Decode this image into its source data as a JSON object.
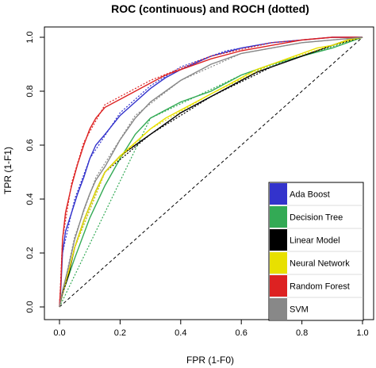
{
  "chart_data": {
    "type": "line",
    "title": "ROC (continuous) and ROCH (dotted)",
    "xlabel": "FPR (1-F0)",
    "ylabel": "TPR (1-F1)",
    "xlim": [
      0,
      1
    ],
    "ylim": [
      0,
      1
    ],
    "x_ticks": [
      "0.0",
      "0.2",
      "0.4",
      "0.6",
      "0.8",
      "1.0"
    ],
    "y_ticks": [
      "0.0",
      "0.2",
      "0.4",
      "0.6",
      "0.8",
      "1.0"
    ],
    "grid": false,
    "legend_position": "bottom-right",
    "diagonal": {
      "style": "dashed",
      "color": "#000000",
      "points": [
        [
          0,
          0
        ],
        [
          1,
          1
        ]
      ]
    },
    "series": [
      {
        "name": "Ada Boost",
        "color": "#3333cc",
        "roc": [
          [
            0,
            0
          ],
          [
            0.005,
            0.08
          ],
          [
            0.01,
            0.2
          ],
          [
            0.02,
            0.28
          ],
          [
            0.04,
            0.35
          ],
          [
            0.06,
            0.42
          ],
          [
            0.08,
            0.48
          ],
          [
            0.1,
            0.55
          ],
          [
            0.12,
            0.6
          ],
          [
            0.15,
            0.64
          ],
          [
            0.2,
            0.71
          ],
          [
            0.25,
            0.76
          ],
          [
            0.3,
            0.81
          ],
          [
            0.35,
            0.85
          ],
          [
            0.4,
            0.88
          ],
          [
            0.5,
            0.93
          ],
          [
            0.6,
            0.96
          ],
          [
            0.7,
            0.98
          ],
          [
            0.8,
            0.99
          ],
          [
            0.9,
            1
          ],
          [
            1,
            1
          ]
        ],
        "roch": [
          [
            0,
            0
          ],
          [
            0.01,
            0.2
          ],
          [
            0.05,
            0.4
          ],
          [
            0.1,
            0.55
          ],
          [
            0.2,
            0.72
          ],
          [
            0.3,
            0.82
          ],
          [
            0.4,
            0.89
          ],
          [
            0.55,
            0.95
          ],
          [
            0.7,
            0.98
          ],
          [
            0.9,
            1
          ],
          [
            1,
            1
          ]
        ]
      },
      {
        "name": "Decision Tree",
        "color": "#33aa55",
        "roc": [
          [
            0,
            0
          ],
          [
            0.01,
            0.05
          ],
          [
            0.05,
            0.18
          ],
          [
            0.1,
            0.33
          ],
          [
            0.15,
            0.45
          ],
          [
            0.2,
            0.55
          ],
          [
            0.25,
            0.64
          ],
          [
            0.3,
            0.7
          ],
          [
            0.35,
            0.73
          ],
          [
            0.4,
            0.76
          ],
          [
            0.5,
            0.8
          ],
          [
            0.6,
            0.86
          ],
          [
            0.7,
            0.9
          ],
          [
            0.8,
            0.93
          ],
          [
            0.9,
            0.96
          ],
          [
            1,
            1
          ]
        ],
        "roch": [
          [
            0,
            0
          ],
          [
            0.3,
            0.7
          ],
          [
            0.6,
            0.86
          ],
          [
            1,
            1
          ]
        ]
      },
      {
        "name": "Linear Model",
        "color": "#000000",
        "roc": [
          [
            0,
            0
          ],
          [
            0.01,
            0.05
          ],
          [
            0.03,
            0.12
          ],
          [
            0.05,
            0.22
          ],
          [
            0.08,
            0.32
          ],
          [
            0.12,
            0.43
          ],
          [
            0.15,
            0.5
          ],
          [
            0.2,
            0.56
          ],
          [
            0.25,
            0.6
          ],
          [
            0.3,
            0.64
          ],
          [
            0.35,
            0.68
          ],
          [
            0.4,
            0.72
          ],
          [
            0.45,
            0.75
          ],
          [
            0.5,
            0.78
          ],
          [
            0.55,
            0.81
          ],
          [
            0.6,
            0.84
          ],
          [
            0.65,
            0.87
          ],
          [
            0.7,
            0.89
          ],
          [
            0.75,
            0.91
          ],
          [
            0.8,
            0.93
          ],
          [
            0.85,
            0.95
          ],
          [
            0.9,
            0.97
          ],
          [
            0.95,
            0.99
          ],
          [
            1,
            1
          ]
        ],
        "roch": [
          [
            0,
            0
          ],
          [
            0.05,
            0.22
          ],
          [
            0.15,
            0.5
          ],
          [
            0.3,
            0.64
          ],
          [
            0.5,
            0.78
          ],
          [
            0.7,
            0.89
          ],
          [
            0.9,
            0.97
          ],
          [
            1,
            1
          ]
        ]
      },
      {
        "name": "Neural Network",
        "color": "#e8e000",
        "roc": [
          [
            0,
            0
          ],
          [
            0.01,
            0.06
          ],
          [
            0.03,
            0.13
          ],
          [
            0.05,
            0.22
          ],
          [
            0.08,
            0.32
          ],
          [
            0.12,
            0.43
          ],
          [
            0.15,
            0.5
          ],
          [
            0.2,
            0.56
          ],
          [
            0.25,
            0.61
          ],
          [
            0.3,
            0.66
          ],
          [
            0.35,
            0.7
          ],
          [
            0.4,
            0.73
          ],
          [
            0.45,
            0.76
          ],
          [
            0.5,
            0.79
          ],
          [
            0.55,
            0.82
          ],
          [
            0.6,
            0.85
          ],
          [
            0.65,
            0.88
          ],
          [
            0.7,
            0.9
          ],
          [
            0.75,
            0.92
          ],
          [
            0.8,
            0.94
          ],
          [
            0.85,
            0.96
          ],
          [
            0.9,
            0.97
          ],
          [
            0.95,
            0.99
          ],
          [
            1,
            1
          ]
        ],
        "roch": [
          [
            0,
            0
          ],
          [
            0.05,
            0.22
          ],
          [
            0.15,
            0.5
          ],
          [
            0.3,
            0.66
          ],
          [
            0.5,
            0.79
          ],
          [
            0.7,
            0.9
          ],
          [
            0.9,
            0.97
          ],
          [
            1,
            1
          ]
        ]
      },
      {
        "name": "Random Forest",
        "color": "#dd2222",
        "roc": [
          [
            0,
            0
          ],
          [
            0.005,
            0.1
          ],
          [
            0.01,
            0.25
          ],
          [
            0.02,
            0.35
          ],
          [
            0.04,
            0.45
          ],
          [
            0.06,
            0.53
          ],
          [
            0.08,
            0.6
          ],
          [
            0.1,
            0.66
          ],
          [
            0.12,
            0.7
          ],
          [
            0.15,
            0.74
          ],
          [
            0.2,
            0.77
          ],
          [
            0.25,
            0.8
          ],
          [
            0.3,
            0.83
          ],
          [
            0.35,
            0.86
          ],
          [
            0.4,
            0.88
          ],
          [
            0.5,
            0.92
          ],
          [
            0.6,
            0.95
          ],
          [
            0.7,
            0.97
          ],
          [
            0.8,
            0.99
          ],
          [
            0.9,
            1
          ],
          [
            1,
            1
          ]
        ],
        "roch": [
          [
            0,
            0
          ],
          [
            0.01,
            0.25
          ],
          [
            0.04,
            0.46
          ],
          [
            0.08,
            0.61
          ],
          [
            0.15,
            0.75
          ],
          [
            0.3,
            0.84
          ],
          [
            0.5,
            0.93
          ],
          [
            0.7,
            0.98
          ],
          [
            0.9,
            1
          ],
          [
            1,
            1
          ]
        ]
      },
      {
        "name": "SVM",
        "color": "#888888",
        "roc": [
          [
            0,
            0
          ],
          [
            0.01,
            0.06
          ],
          [
            0.03,
            0.15
          ],
          [
            0.05,
            0.25
          ],
          [
            0.08,
            0.36
          ],
          [
            0.1,
            0.42
          ],
          [
            0.12,
            0.47
          ],
          [
            0.15,
            0.52
          ],
          [
            0.2,
            0.62
          ],
          [
            0.25,
            0.7
          ],
          [
            0.3,
            0.76
          ],
          [
            0.35,
            0.8
          ],
          [
            0.4,
            0.84
          ],
          [
            0.5,
            0.9
          ],
          [
            0.6,
            0.94
          ],
          [
            0.7,
            0.96
          ],
          [
            0.8,
            0.98
          ],
          [
            0.9,
            0.99
          ],
          [
            1,
            1
          ]
        ],
        "roch": [
          [
            0,
            0
          ],
          [
            0.05,
            0.26
          ],
          [
            0.12,
            0.48
          ],
          [
            0.25,
            0.71
          ],
          [
            0.4,
            0.84
          ],
          [
            0.6,
            0.94
          ],
          [
            0.8,
            0.98
          ],
          [
            1,
            1
          ]
        ]
      }
    ]
  }
}
